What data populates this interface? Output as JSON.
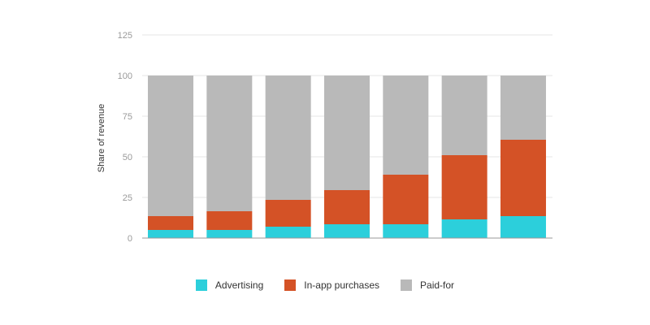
{
  "chart_data": {
    "type": "bar",
    "stacked": true,
    "title": "",
    "xlabel": "",
    "ylabel": "Share of revenue",
    "ylim": [
      0,
      125
    ],
    "y_ticks": [
      "0",
      "25",
      "50",
      "75",
      "100",
      "125"
    ],
    "y_tick_values": [
      0,
      25,
      50,
      75,
      100,
      125
    ],
    "grid": true,
    "legend_position": "bottom",
    "categories": [
      "",
      "",
      "",
      "",
      "",
      "",
      ""
    ],
    "series": [
      {
        "name": "Advertising",
        "color": "#2ccfdb",
        "values": [
          5,
          5,
          7,
          8.5,
          8.5,
          11.5,
          13.5
        ]
      },
      {
        "name": "In-app purchases",
        "color": "#d45226",
        "values": [
          8.5,
          11.5,
          16.5,
          21,
          30.5,
          39.5,
          47
        ]
      },
      {
        "name": "Paid-for",
        "color": "#b9b9b9",
        "values": [
          86.5,
          83.5,
          76.5,
          70.5,
          61,
          49,
          39.5
        ]
      }
    ]
  },
  "legend": {
    "items": [
      {
        "label": "Advertising",
        "color": "#2ccfdb"
      },
      {
        "label": "In-app purchases",
        "color": "#d45226"
      },
      {
        "label": "Paid-for",
        "color": "#b9b9b9"
      }
    ]
  }
}
